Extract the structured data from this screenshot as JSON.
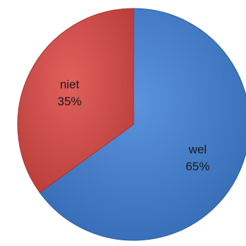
{
  "chart_data": {
    "type": "pie",
    "title": "",
    "slices": [
      {
        "label": "wel",
        "value": 65,
        "display": "65%",
        "color": "#3e78c8",
        "edge": "#2a5a9e"
      },
      {
        "label": "niet",
        "value": 35,
        "display": "35%",
        "color": "#d24a46",
        "edge": "#a83431"
      }
    ],
    "start_angle_deg": 0,
    "direction": "clockwise",
    "legend": "none",
    "label_position": "inside"
  }
}
